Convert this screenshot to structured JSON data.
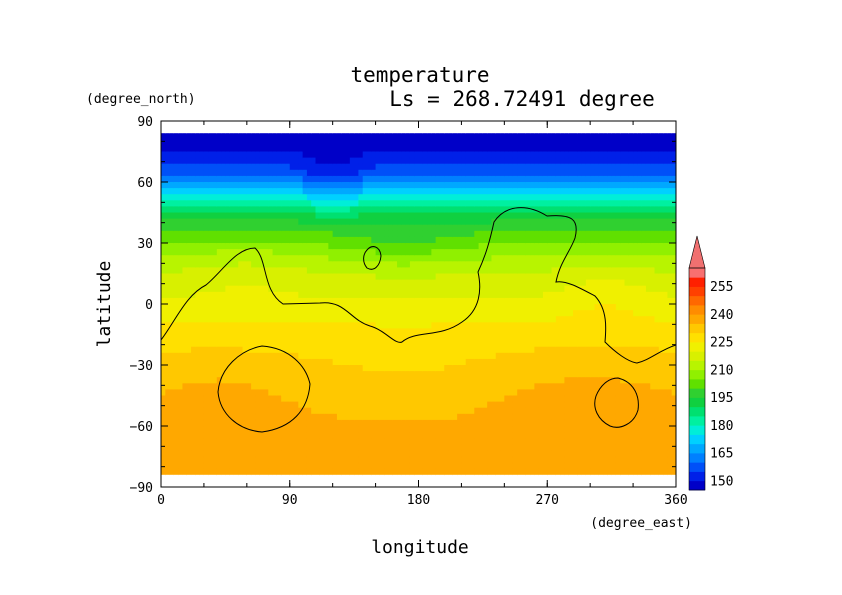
{
  "chart_data": {
    "type": "heatmap",
    "title": "temperature",
    "subtitle": "Ls = 268.72491 degree",
    "xlabel": "longitude",
    "ylabel": "latitude",
    "xunit": "(degree_east)",
    "yunit": "(degree_north)",
    "xlim": [
      0,
      360
    ],
    "ylim": [
      -90,
      90
    ],
    "xticks": [
      "0",
      "90",
      "180",
      "270",
      "360"
    ],
    "yticks": [
      "90",
      "60",
      "30",
      "0",
      "−30",
      "−60",
      "−90"
    ],
    "colorbar": {
      "labels": [
        "255",
        "240",
        "225",
        "210",
        "195",
        "180",
        "165",
        "150"
      ],
      "levels": [
        145,
        150,
        155,
        160,
        165,
        170,
        175,
        180,
        185,
        190,
        195,
        200,
        205,
        210,
        215,
        220,
        225,
        230,
        235,
        240,
        245,
        250,
        255,
        260
      ],
      "colors": [
        "#0000c8",
        "#0020e8",
        "#0050f8",
        "#0080ff",
        "#00a8ff",
        "#00d0ff",
        "#00eed8",
        "#00f0a0",
        "#00e070",
        "#10d040",
        "#30d030",
        "#60e000",
        "#90f000",
        "#b8f400",
        "#d8f000",
        "#f0f000",
        "#ffe000",
        "#ffc800",
        "#ffa800",
        "#ff8c00",
        "#ff6800",
        "#ff4000",
        "#ff2000",
        "#f87070"
      ]
    },
    "contour_level": 225,
    "data_note_latitude_profile": {
      "lat": [
        85,
        75,
        65,
        60,
        55,
        50,
        45,
        40,
        35,
        30,
        25,
        20,
        15,
        10,
        5,
        0,
        -5,
        -10,
        -15,
        -20,
        -30,
        -40,
        -50,
        -60,
        -70,
        -80
      ],
      "temp": [
        148,
        150,
        158,
        166,
        174,
        182,
        190,
        196,
        201,
        205,
        209,
        212,
        215,
        217,
        219,
        221,
        223,
        225,
        227,
        229,
        231,
        233,
        235,
        236,
        237,
        238
      ]
    }
  }
}
